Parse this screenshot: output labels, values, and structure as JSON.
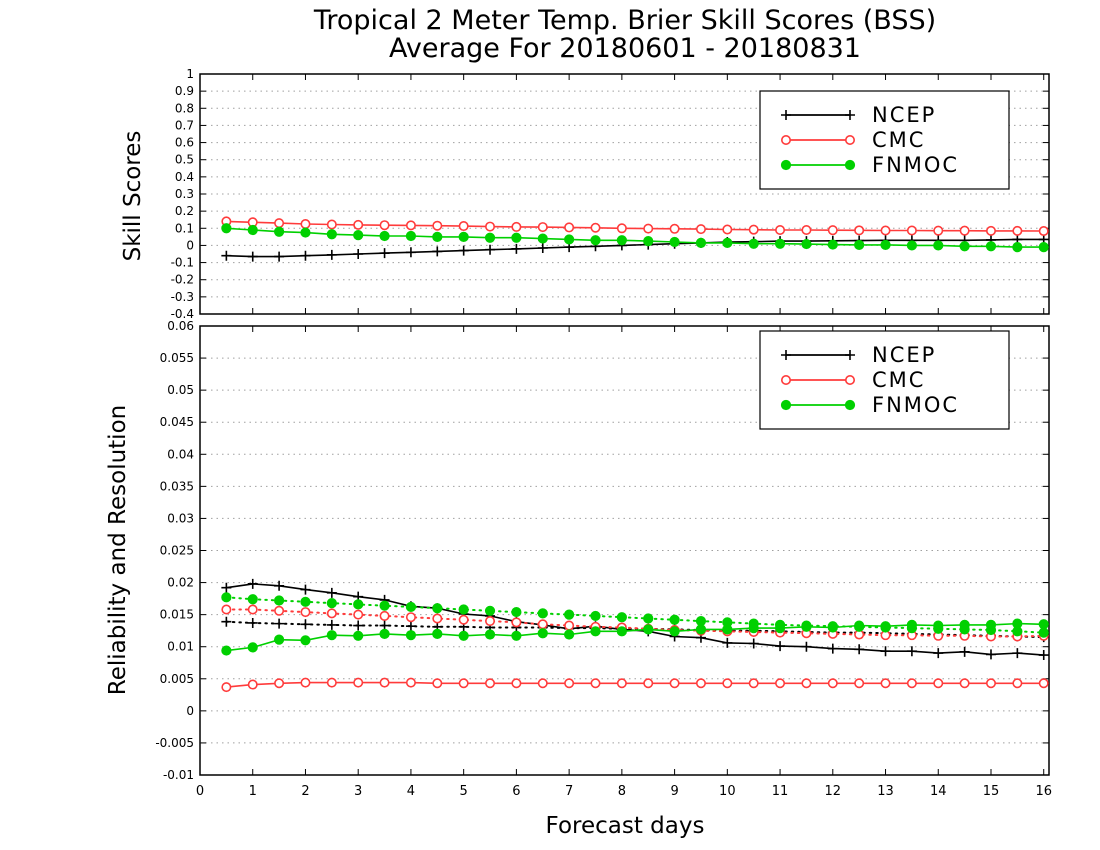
{
  "title_line1": "Tropical 2 Meter Temp. Brier Skill Scores (BSS)",
  "title_line2": "Average For 20180601 - 20180831",
  "colors": {
    "ncep": "#000000",
    "cmc": "#ff3b3b",
    "fnmoc": "#00d000",
    "grid": "#a0a0a0"
  },
  "chart_data": [
    {
      "type": "line",
      "panel": "top",
      "ylabel": "Skill Scores",
      "xlabel": "Forecast days",
      "xlim": [
        0,
        16.1
      ],
      "ylim": [
        -0.4,
        1
      ],
      "yticks": [
        "-0.4",
        "-0.3",
        "-0.2",
        "-0.1",
        "0",
        "0.1",
        "0.2",
        "0.3",
        "0.4",
        "0.5",
        "0.6",
        "0.7",
        "0.8",
        "0.9",
        "1"
      ],
      "xticks": [
        "0",
        "1",
        "2",
        "3",
        "4",
        "5",
        "6",
        "7",
        "8",
        "9",
        "10",
        "11",
        "12",
        "13",
        "14",
        "15",
        "16"
      ],
      "grid": true,
      "legend": "top-right",
      "legend_entries": [
        "NCEP",
        "CMC",
        "FNMOC"
      ],
      "x": [
        0.5,
        1,
        1.5,
        2,
        2.5,
        3,
        3.5,
        4,
        4.5,
        5,
        5.5,
        6,
        6.5,
        7,
        7.5,
        8,
        8.5,
        9,
        9.5,
        10,
        10.5,
        11,
        11.5,
        12,
        12.5,
        13,
        13.5,
        14,
        14.5,
        15,
        15.5,
        16
      ],
      "series": [
        {
          "name": "NCEP",
          "marker": "plus",
          "values": [
            -0.06,
            -0.065,
            -0.065,
            -0.06,
            -0.055,
            -0.05,
            -0.045,
            -0.04,
            -0.035,
            -0.03,
            -0.025,
            -0.02,
            -0.015,
            -0.01,
            -0.005,
            0,
            0.005,
            0.01,
            0.015,
            0.02,
            0.022,
            0.025,
            0.025,
            0.027,
            0.028,
            0.03,
            0.03,
            0.03,
            0.03,
            0.032,
            0.035,
            0.035
          ]
        },
        {
          "name": "CMC",
          "marker": "open-circle",
          "values": [
            0.14,
            0.135,
            0.13,
            0.125,
            0.122,
            0.12,
            0.118,
            0.117,
            0.115,
            0.113,
            0.11,
            0.108,
            0.107,
            0.105,
            0.103,
            0.1,
            0.098,
            0.097,
            0.095,
            0.093,
            0.092,
            0.09,
            0.09,
            0.089,
            0.088,
            0.087,
            0.087,
            0.086,
            0.086,
            0.085,
            0.085,
            0.084
          ]
        },
        {
          "name": "FNMOC",
          "marker": "filled-circle",
          "values": [
            0.1,
            0.09,
            0.08,
            0.075,
            0.065,
            0.06,
            0.055,
            0.055,
            0.05,
            0.05,
            0.045,
            0.045,
            0.04,
            0.035,
            0.03,
            0.03,
            0.025,
            0.02,
            0.015,
            0.015,
            0.01,
            0.01,
            0.008,
            0.005,
            0.003,
            0.003,
            0,
            0,
            -0.005,
            -0.005,
            -0.01,
            -0.01
          ]
        }
      ]
    },
    {
      "type": "line",
      "panel": "bottom",
      "ylabel": "Reliability and Resolution",
      "xlabel": "Forecast days",
      "xlim": [
        0,
        16.1
      ],
      "ylim": [
        -0.01,
        0.06
      ],
      "yticks": [
        "-0.01",
        "-0.005",
        "0",
        "0.005",
        "0.01",
        "0.015",
        "0.02",
        "0.025",
        "0.03",
        "0.035",
        "0.04",
        "0.045",
        "0.05",
        "0.055",
        "0.06"
      ],
      "xticks": [
        "0",
        "1",
        "2",
        "3",
        "4",
        "5",
        "6",
        "7",
        "8",
        "9",
        "10",
        "11",
        "12",
        "13",
        "14",
        "15",
        "16"
      ],
      "grid": true,
      "legend": "top-right",
      "legend_entries": [
        "NCEP",
        "CMC",
        "FNMOC"
      ],
      "x": [
        0.5,
        1,
        1.5,
        2,
        2.5,
        3,
        3.5,
        4,
        4.5,
        5,
        5.5,
        6,
        6.5,
        7,
        7.5,
        8,
        8.5,
        9,
        9.5,
        10,
        10.5,
        11,
        11.5,
        12,
        12.5,
        13,
        13.5,
        14,
        14.5,
        15,
        15.5,
        16
      ],
      "series": [
        {
          "name": "NCEP",
          "marker": "plus",
          "style": "solid",
          "values": [
            0.0192,
            0.0198,
            0.0195,
            0.0189,
            0.0184,
            0.0178,
            0.0173,
            0.0163,
            0.016,
            0.0151,
            0.0148,
            0.0139,
            0.0134,
            0.0128,
            0.0132,
            0.0127,
            0.0124,
            0.0116,
            0.0114,
            0.0106,
            0.0105,
            0.0101,
            0.01,
            0.0097,
            0.0096,
            0.0093,
            0.0093,
            0.009,
            0.0092,
            0.0088,
            0.009,
            0.0087
          ]
        },
        {
          "name": "NCEP",
          "marker": "plus",
          "style": "dotted",
          "values": [
            0.0139,
            0.0137,
            0.0136,
            0.0135,
            0.0134,
            0.0133,
            0.0133,
            0.0132,
            0.0131,
            0.0131,
            0.013,
            0.013,
            0.013,
            0.0129,
            0.0129,
            0.0128,
            0.0128,
            0.0127,
            0.0126,
            0.0125,
            0.0125,
            0.0124,
            0.0123,
            0.0122,
            0.0122,
            0.0121,
            0.012,
            0.0119,
            0.0118,
            0.0117,
            0.0116,
            0.0115
          ]
        },
        {
          "name": "CMC",
          "marker": "open-circle",
          "style": "solid",
          "values": [
            0.0037,
            0.0041,
            0.0043,
            0.0044,
            0.0044,
            0.0044,
            0.0044,
            0.0044,
            0.0043,
            0.0043,
            0.0043,
            0.0043,
            0.0043,
            0.0043,
            0.0043,
            0.0043,
            0.0043,
            0.0043,
            0.0043,
            0.0043,
            0.0043,
            0.0043,
            0.0043,
            0.0043,
            0.0043,
            0.0043,
            0.0043,
            0.0043,
            0.0043,
            0.0043,
            0.0043,
            0.0043
          ]
        },
        {
          "name": "CMC",
          "marker": "open-circle",
          "style": "dotted",
          "values": [
            0.0158,
            0.0158,
            0.0156,
            0.0154,
            0.0152,
            0.015,
            0.0148,
            0.0146,
            0.0144,
            0.0142,
            0.014,
            0.0138,
            0.0135,
            0.0133,
            0.0131,
            0.013,
            0.0128,
            0.0126,
            0.0125,
            0.0124,
            0.0123,
            0.0122,
            0.0121,
            0.012,
            0.0119,
            0.0118,
            0.0118,
            0.0117,
            0.0117,
            0.0116,
            0.0116,
            0.0117
          ]
        },
        {
          "name": "FNMOC",
          "marker": "filled-circle",
          "style": "solid",
          "values": [
            0.0094,
            0.0099,
            0.0111,
            0.011,
            0.0118,
            0.0117,
            0.012,
            0.0118,
            0.012,
            0.0117,
            0.0119,
            0.0117,
            0.0121,
            0.0119,
            0.0124,
            0.0124,
            0.0127,
            0.0124,
            0.0127,
            0.0127,
            0.0129,
            0.0129,
            0.0131,
            0.013,
            0.0133,
            0.0132,
            0.0134,
            0.0133,
            0.0134,
            0.0134,
            0.0136,
            0.0135
          ]
        },
        {
          "name": "FNMOC",
          "marker": "filled-circle",
          "style": "dotted",
          "values": [
            0.0177,
            0.0174,
            0.0172,
            0.017,
            0.0168,
            0.0166,
            0.0164,
            0.0162,
            0.016,
            0.0158,
            0.0156,
            0.0154,
            0.0152,
            0.015,
            0.0148,
            0.0146,
            0.0144,
            0.0142,
            0.014,
            0.0138,
            0.0136,
            0.0134,
            0.0133,
            0.0132,
            0.0131,
            0.013,
            0.0129,
            0.0128,
            0.0127,
            0.0126,
            0.0124,
            0.0122
          ]
        }
      ]
    }
  ]
}
